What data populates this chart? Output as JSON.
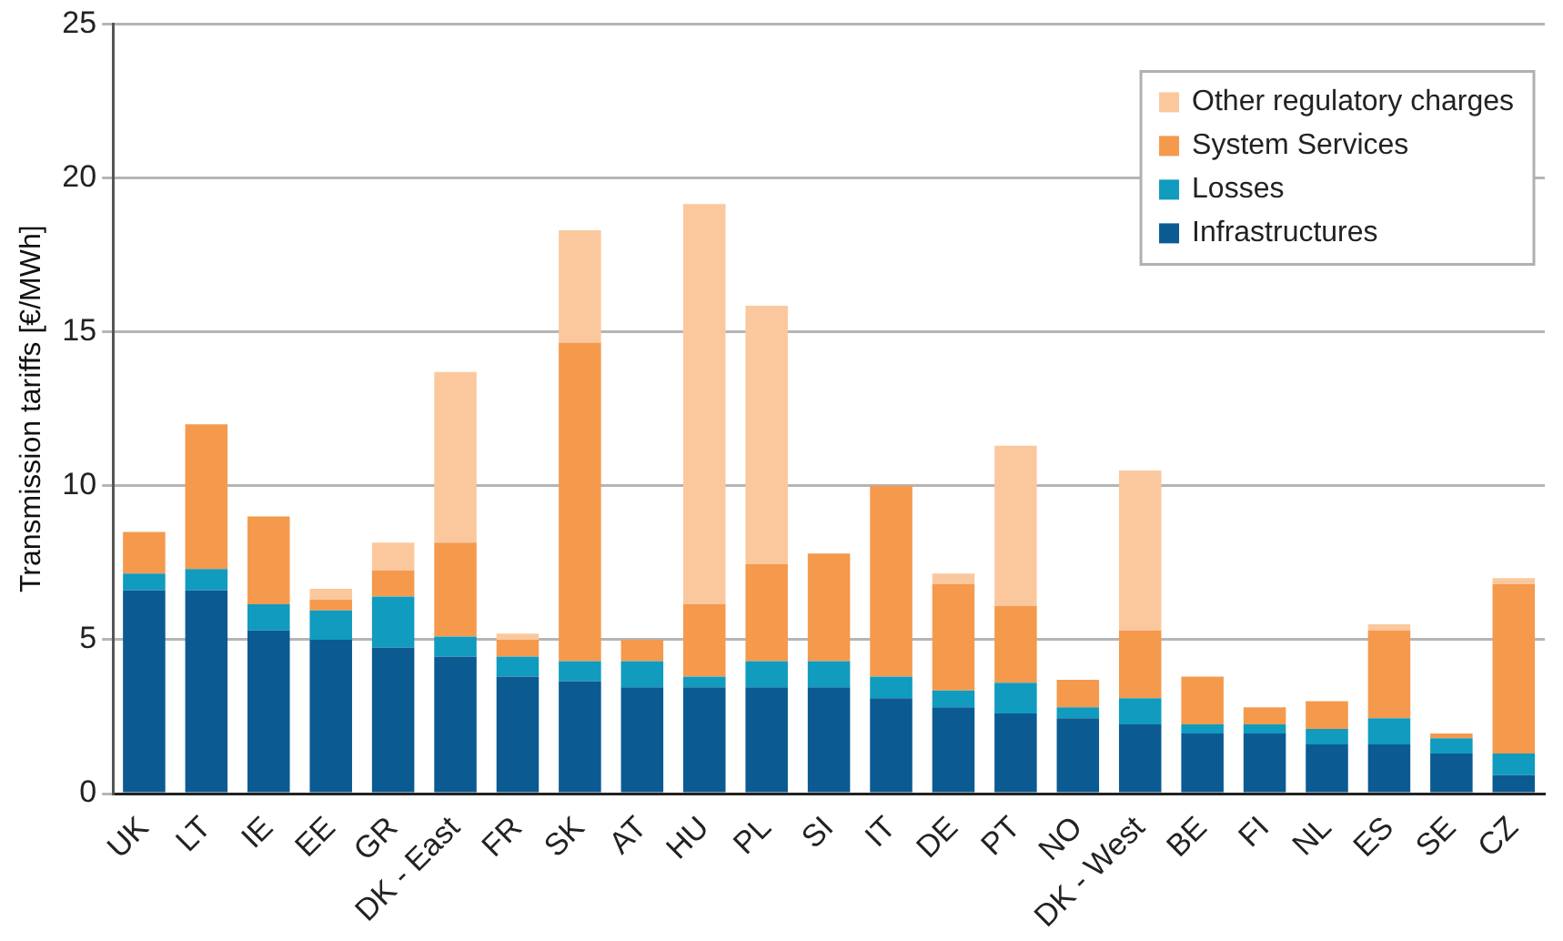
{
  "chart_data": {
    "type": "bar",
    "stacked": true,
    "ylabel": "Transmission tariffs [€/MWh]",
    "categories": [
      "UK",
      "LT",
      "IE",
      "EE",
      "GR",
      "DK - East",
      "FR",
      "SK",
      "AT",
      "HU",
      "PL",
      "SI",
      "IT",
      "DE",
      "PT",
      "NO",
      "DK - West",
      "BE",
      "FI",
      "NL",
      "ES",
      "SE",
      "CZ"
    ],
    "series": [
      {
        "name": "Infrastructures",
        "color": "#0b5a92",
        "values": [
          6.6,
          6.6,
          5.3,
          5.0,
          4.75,
          4.45,
          3.8,
          3.65,
          3.45,
          3.45,
          3.45,
          3.45,
          3.1,
          2.8,
          2.6,
          2.45,
          2.25,
          1.95,
          1.95,
          1.6,
          1.6,
          1.3,
          0.6
        ]
      },
      {
        "name": "Losses",
        "color": "#109bbf",
        "values": [
          0.55,
          0.7,
          0.85,
          0.95,
          1.65,
          0.65,
          0.65,
          0.65,
          0.85,
          0.35,
          0.85,
          0.85,
          0.7,
          0.55,
          1.0,
          0.35,
          0.85,
          0.3,
          0.3,
          0.5,
          0.85,
          0.5,
          0.7
        ]
      },
      {
        "name": "System Services",
        "color": "#f5994d",
        "values": [
          1.35,
          4.7,
          2.85,
          0.35,
          0.85,
          3.05,
          0.55,
          10.35,
          0.7,
          2.35,
          3.15,
          3.5,
          6.2,
          3.45,
          2.5,
          0.9,
          2.2,
          1.55,
          0.55,
          0.9,
          2.85,
          0.15,
          5.5
        ]
      },
      {
        "name": "Other regulatory charges",
        "color": "#fbc89d",
        "values": [
          0,
          0,
          0,
          0.35,
          0.9,
          5.55,
          0.2,
          3.65,
          0,
          13.0,
          8.4,
          0,
          0,
          0.35,
          5.2,
          0,
          5.2,
          0,
          0,
          0,
          0.2,
          0,
          0.2
        ]
      }
    ],
    "ylim": [
      0,
      25
    ],
    "yticks": [
      0,
      5,
      10,
      15,
      20,
      25
    ],
    "grid": "y",
    "legend": "top right"
  }
}
